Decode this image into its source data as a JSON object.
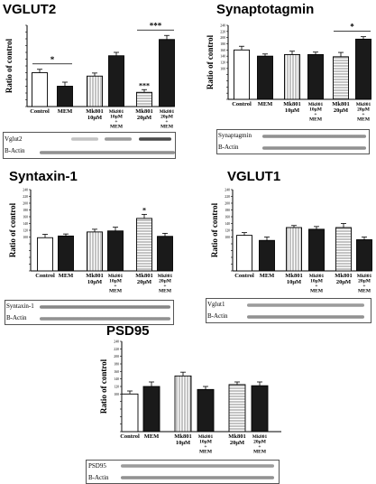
{
  "charts": [
    {
      "id": "vglut2",
      "title": "VGLUT2",
      "ylabel": "Ratio of control",
      "yticks": [],
      "categories": [
        "Control",
        "MEM",
        "Mk801\n10μM",
        "Mk801\n10μM\n+\nMEM",
        "Mk801\n20μM",
        "Mk801\n20μM\n+\nMEM"
      ],
      "blot_labels": [
        "Vglut2",
        "B-Actin"
      ],
      "annotations": [
        "*",
        "***",
        "***"
      ]
    },
    {
      "id": "synaptotagmin",
      "title": "Synaptotagmin",
      "ylabel": "Ratio of control",
      "yticks": [
        "100",
        "120",
        "140",
        "160",
        "180",
        "200",
        "220",
        "240"
      ],
      "categories": [
        "Control",
        "MEM",
        "Mk801\n10μM",
        "Mk801\n10μM\n+\nMEM",
        "Mk801\n20μM",
        "Mk801\n20μM\n+\nMEM"
      ],
      "blot_labels": [
        "Synaptagmin",
        "B-Actin"
      ],
      "annotations": [
        "*"
      ]
    },
    {
      "id": "syntaxin1",
      "title": "Syntaxin-1",
      "ylabel": "Ratio of control",
      "yticks": [
        "100",
        "120",
        "140",
        "160",
        "180",
        "200",
        "220",
        "240"
      ],
      "categories": [
        "Control",
        "MEM",
        "Mk801\n10μM",
        "Mk801\n10μM\n+\nMEM",
        "Mk801\n20μM",
        "Mk801\n20μM\n+\nMEM"
      ],
      "blot_labels": [
        "Syntaxin-1",
        "B-Actin"
      ],
      "annotations": [
        "*"
      ]
    },
    {
      "id": "vglut1",
      "title": "VGLUT1",
      "ylabel": "Ratio of control",
      "yticks": [
        "100",
        "120",
        "140",
        "160",
        "180",
        "200",
        "220",
        "240"
      ],
      "categories": [
        "Control",
        "MEM",
        "Mk801\n10μM",
        "Mk801\n10μM\n+\nMEM",
        "Mk801\n20μM",
        "Mk801\n20μM\n+\nMEM"
      ],
      "blot_labels": [
        "Vglut1",
        "B-Actin"
      ],
      "annotations": []
    },
    {
      "id": "psd95",
      "title": "PSD95",
      "ylabel": "Ratio of control",
      "yticks": [
        "100",
        "120",
        "140",
        "160",
        "180",
        "200",
        "220",
        "240"
      ],
      "categories": [
        "Control",
        "MEM",
        "Mk801\n10μM",
        "Mk801\n10μM\n+\nMEM",
        "Mk801\n20μM",
        "Mk801\n20μM\n+\nMEM"
      ],
      "blot_labels": [
        "PSD95",
        "B-Actin"
      ],
      "annotations": []
    }
  ],
  "chart_data": [
    {
      "type": "bar",
      "title": "VGLUT2",
      "ylabel": "Ratio of control",
      "ylim": [
        0,
        240
      ],
      "categories": [
        "Control",
        "MEM",
        "Mk801 10μM",
        "Mk801 10μM + MEM",
        "Mk801 20μM",
        "Mk801 20μM + MEM"
      ],
      "values": [
        100,
        60,
        90,
        150,
        42,
        198
      ],
      "errors": [
        10,
        12,
        9,
        10,
        8,
        12
      ],
      "significance": [
        {
          "between": [
            "Control",
            "MEM"
          ],
          "label": "*"
        },
        {
          "on": "Mk801 20μM",
          "label": "***"
        },
        {
          "between": [
            "Mk801 20μM",
            "Mk801 20μM + MEM"
          ],
          "label": "***"
        }
      ]
    },
    {
      "type": "bar",
      "title": "Synaptotagmin",
      "ylabel": "Ratio of control",
      "ylim": [
        0,
        240
      ],
      "categories": [
        "Control",
        "MEM",
        "Mk801 10μM",
        "Mk801 10μM + MEM",
        "Mk801 20μM",
        "Mk801 20μM + MEM"
      ],
      "values": [
        160,
        140,
        145,
        145,
        138,
        195
      ],
      "errors": [
        12,
        7,
        11,
        8,
        14,
        8
      ],
      "significance": [
        {
          "between": [
            "Mk801 20μM",
            "Mk801 20μM + MEM"
          ],
          "label": "*"
        }
      ]
    },
    {
      "type": "bar",
      "title": "Syntaxin-1",
      "ylabel": "Ratio of control",
      "ylim": [
        0,
        240
      ],
      "categories": [
        "Control",
        "MEM",
        "Mk801 10μM",
        "Mk801 10μM + MEM",
        "Mk801 20μM",
        "Mk801 20μM + MEM"
      ],
      "values": [
        98,
        103,
        115,
        118,
        155,
        102
      ],
      "errors": [
        10,
        6,
        8,
        11,
        12,
        9
      ],
      "significance": [
        {
          "on": "Mk801 20μM",
          "label": "*"
        }
      ]
    },
    {
      "type": "bar",
      "title": "VGLUT1",
      "ylabel": "Ratio of control",
      "ylim": [
        0,
        240
      ],
      "categories": [
        "Control",
        "MEM",
        "Mk801 10μM",
        "Mk801 10μM + MEM",
        "Mk801 20μM",
        "Mk801 20μM + MEM"
      ],
      "values": [
        105,
        90,
        128,
        123,
        128,
        92
      ],
      "errors": [
        8,
        10,
        6,
        8,
        12,
        8
      ],
      "significance": []
    },
    {
      "type": "bar",
      "title": "PSD95",
      "ylabel": "Ratio of control",
      "ylim": [
        0,
        240
      ],
      "categories": [
        "Control",
        "MEM",
        "Mk801 10μM",
        "Mk801 10μM + MEM",
        "Mk801 20μM",
        "Mk801 20μM + MEM"
      ],
      "values": [
        100,
        120,
        148,
        112,
        125,
        122
      ],
      "errors": [
        8,
        12,
        10,
        8,
        7,
        10
      ],
      "significance": []
    }
  ]
}
